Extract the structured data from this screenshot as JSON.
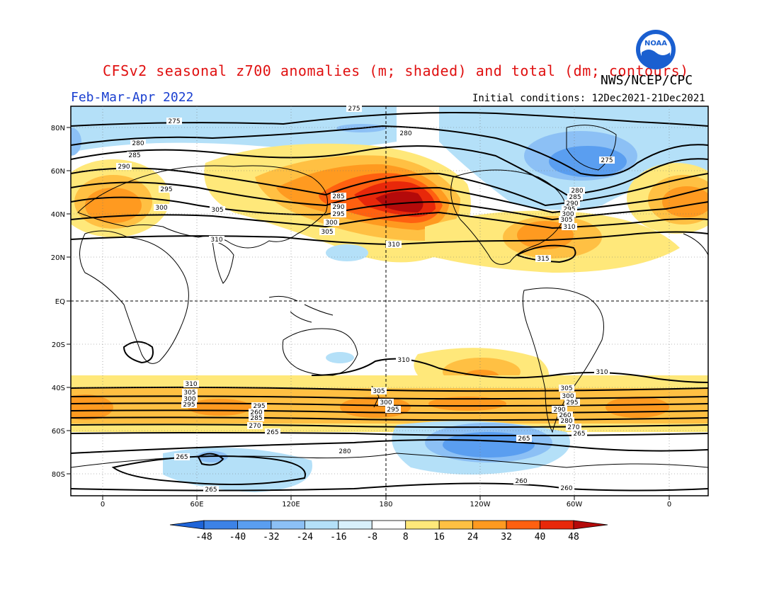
{
  "header": {
    "title": "CFSv2 seasonal z700 anomalies (m; shaded) and total (dm; contours)",
    "org": "NWS/NCEP/CPC",
    "period": "Feb-Mar-Apr 2022",
    "init": "Initial conditions: 12Dec2021-21Dec2021",
    "logo_text": "NOAA"
  },
  "axes": {
    "lat_labels": [
      "80N",
      "60N",
      "40N",
      "20N",
      "EQ",
      "20S",
      "40S",
      "60S",
      "80S"
    ],
    "lon_labels": [
      "0",
      "60E",
      "120E",
      "180",
      "120W",
      "60W",
      "0"
    ]
  },
  "colorbar": {
    "labels": [
      "-48",
      "-40",
      "-32",
      "-24",
      "-16",
      "-8",
      "8",
      "16",
      "24",
      "32",
      "40",
      "48"
    ],
    "colors": [
      "#1e64d8",
      "#3c82e6",
      "#5a9ef0",
      "#8cc0f5",
      "#b4e0f8",
      "#ffffff",
      "#ffe87a",
      "#ffc043",
      "#ff9a20",
      "#ff6010",
      "#e8280a",
      "#b40a0a"
    ]
  },
  "contour_labels": [
    {
      "text": "275"
    },
    {
      "text": "280"
    },
    {
      "text": "285"
    },
    {
      "text": "290"
    },
    {
      "text": "295"
    },
    {
      "text": "300"
    },
    {
      "text": "305"
    },
    {
      "text": "310"
    },
    {
      "text": "315"
    },
    {
      "text": "265"
    },
    {
      "text": "270"
    },
    {
      "text": "260"
    }
  ]
}
